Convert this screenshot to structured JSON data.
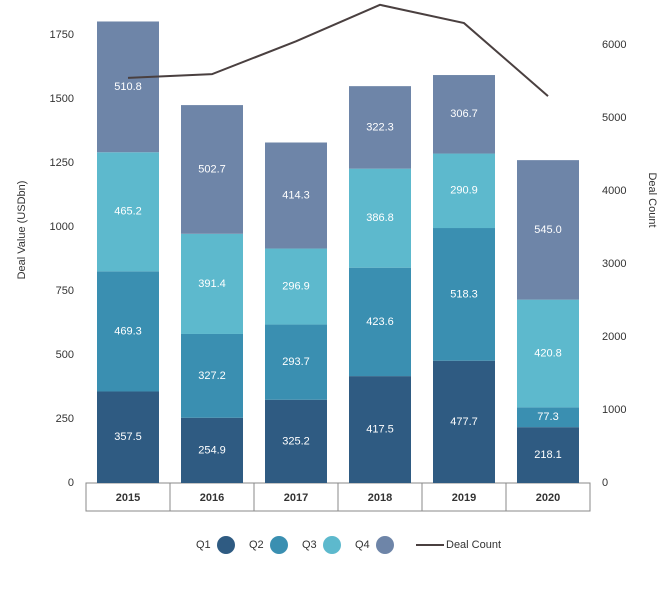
{
  "chart_data": {
    "type": "stacked_bar_line",
    "categories": [
      "2015",
      "2016",
      "2017",
      "2018",
      "2019",
      "2020"
    ],
    "series": [
      {
        "name": "Q1",
        "color": "#2f5b82",
        "values": [
          357.5,
          254.9,
          325.2,
          417.5,
          477.7,
          218.1
        ]
      },
      {
        "name": "Q2",
        "color": "#3a8fb1",
        "values": [
          469.3,
          327.2,
          293.7,
          423.6,
          518.3,
          77.3
        ]
      },
      {
        "name": "Q3",
        "color": "#5db9cd",
        "values": [
          465.2,
          391.4,
          296.9,
          386.8,
          290.9,
          420.8
        ]
      },
      {
        "name": "Q4",
        "color": "#6e85a8",
        "values": [
          510.8,
          502.7,
          414.3,
          322.3,
          306.7,
          545.0
        ],
        "value_labels": [
          "510.8",
          "502.7",
          "414.3",
          "322.3",
          "306.7",
          "545.0"
        ]
      },
      {
        "name": "Deal Count",
        "color": "#4a4040",
        "axis": "y2",
        "values": [
          5550,
          5600,
          6050,
          6550,
          6300,
          5300
        ]
      }
    ],
    "ylabel": "Deal Value (USDbn)",
    "y2label": "Deal Count",
    "ylim": [
      0,
      1875
    ],
    "yticks": [
      0,
      250,
      500,
      750,
      1000,
      1250,
      1500,
      1750
    ],
    "y2lim": [
      0,
      6575
    ],
    "y2ticks": [
      0,
      1000,
      2000,
      3000,
      4000,
      5000,
      6000
    ]
  }
}
